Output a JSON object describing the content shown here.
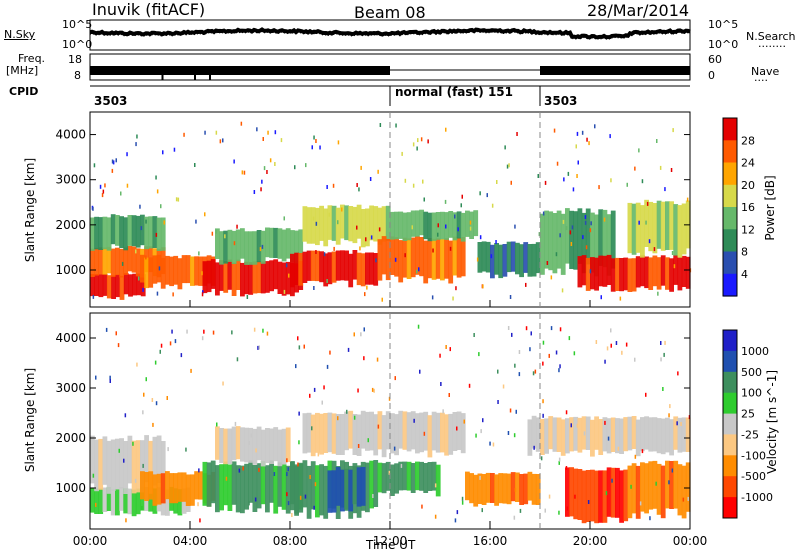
{
  "header": {
    "station": "Inuvik (fitACF)",
    "beam": "Beam 08",
    "date": "28/Mar/2014"
  },
  "top_panels": {
    "nsky_label": "N.Sky",
    "nsearch_label": "N.Search",
    "nsearch_legend": "........",
    "freq_label_1": "Freq.",
    "freq_label_2": "[MHz]",
    "nave_label": "Nave",
    "nave_legend": "....",
    "cpid_label": "CPID",
    "noise_ticks": [
      "10^5",
      "10^0"
    ],
    "freq_ticks": [
      "18",
      "8"
    ],
    "nave_ticks": [
      "60",
      "0"
    ],
    "cpid_segments": [
      {
        "label": "3503",
        "start": 0,
        "end": 12
      },
      {
        "label": "normal (fast) 151",
        "start": 12,
        "end": 18
      },
      {
        "label": "3503",
        "start": 18,
        "end": 24
      }
    ]
  },
  "x_axis": {
    "label": "Time UT",
    "ticks": [
      "00:00",
      "04:00",
      "08:00",
      "12:00",
      "16:00",
      "20:00",
      "00:00"
    ]
  },
  "colors": {
    "power": [
      "#1a1aff",
      "#2a4fb0",
      "#2e8b57",
      "#66b86a",
      "#d7d94a",
      "#ffa500",
      "#ff5a00",
      "#e40000"
    ],
    "velocity": [
      "#ff0000",
      "#ff4800",
      "#ff8c00",
      "#fcc882",
      "#c8c8c8",
      "#2ecc2e",
      "#3e8f5e",
      "#2050b0",
      "#2020c8"
    ]
  },
  "chart_data": [
    {
      "type": "heatmap",
      "title": "Power",
      "xlabel": "",
      "ylabel": "Slant Range [km]",
      "xlim": [
        0,
        24
      ],
      "ylim": [
        180,
        4500
      ],
      "yticks": [
        "1000",
        "2000",
        "3000",
        "4000"
      ],
      "colorbar": {
        "label": "Power [dB]",
        "ticks": [
          "28",
          "24",
          "20",
          "16",
          "12",
          "8",
          "4"
        ],
        "range": [
          0,
          32
        ]
      },
      "bands": [
        {
          "t0": 0,
          "t1": 2.2,
          "r0": 400,
          "r1": 900,
          "level": 7
        },
        {
          "t0": 0,
          "t1": 3,
          "r0": 900,
          "r1": 1500,
          "level": 6
        },
        {
          "t0": 0,
          "t1": 3,
          "r0": 1500,
          "r1": 2200,
          "level": 3
        },
        {
          "t0": 2,
          "t1": 5,
          "r0": 650,
          "r1": 1300,
          "level": 6
        },
        {
          "t0": 4.5,
          "t1": 8.5,
          "r0": 500,
          "r1": 1200,
          "level": 7
        },
        {
          "t0": 5,
          "t1": 8.5,
          "r0": 1200,
          "r1": 1900,
          "level": 3
        },
        {
          "t0": 8,
          "t1": 11.5,
          "r0": 700,
          "r1": 1400,
          "level": 7
        },
        {
          "t0": 8.5,
          "t1": 12,
          "r0": 1600,
          "r1": 2400,
          "level": 4
        },
        {
          "t0": 11.5,
          "t1": 15,
          "r0": 800,
          "r1": 1700,
          "level": 6
        },
        {
          "t0": 12,
          "t1": 15.5,
          "r0": 1700,
          "r1": 2300,
          "level": 3
        },
        {
          "t0": 15.5,
          "t1": 18,
          "r0": 900,
          "r1": 1600,
          "level": 2
        },
        {
          "t0": 18,
          "t1": 21,
          "r0": 1000,
          "r1": 2300,
          "level": 3
        },
        {
          "t0": 19.5,
          "t1": 24,
          "r0": 600,
          "r1": 1300,
          "level": 7
        },
        {
          "t0": 21.5,
          "t1": 24,
          "r0": 1400,
          "r1": 2500,
          "level": 4
        }
      ]
    },
    {
      "type": "heatmap",
      "title": "Velocity",
      "xlabel": "Time UT",
      "ylabel": "Slant Range [km]",
      "xlim": [
        0,
        24
      ],
      "ylim": [
        180,
        4500
      ],
      "yticks": [
        "1000",
        "2000",
        "3000",
        "4000"
      ],
      "colorbar": {
        "label": "Velocity [m s^-1]",
        "ticks": [
          "1000",
          "500",
          "100",
          "25",
          "-25",
          "-100",
          "-500",
          "-1000"
        ]
      },
      "bands": [
        {
          "t0": 0,
          "t1": 4,
          "r0": 500,
          "r1": 1000,
          "level": 5
        },
        {
          "t0": 0,
          "t1": 3,
          "r0": 1000,
          "r1": 2000,
          "level": 4
        },
        {
          "t0": 2,
          "t1": 5,
          "r0": 700,
          "r1": 1300,
          "level": 2
        },
        {
          "t0": 4.5,
          "t1": 8.5,
          "r0": 600,
          "r1": 1500,
          "level": 6
        },
        {
          "t0": 5,
          "t1": 8,
          "r0": 1500,
          "r1": 2200,
          "level": 4
        },
        {
          "t0": 8,
          "t1": 11.5,
          "r0": 500,
          "r1": 1500,
          "level": 6
        },
        {
          "t0": 9.5,
          "t1": 11,
          "r0": 600,
          "r1": 1400,
          "level": 7
        },
        {
          "t0": 8.5,
          "t1": 15,
          "r0": 1700,
          "r1": 2500,
          "level": 4
        },
        {
          "t0": 11.5,
          "t1": 14,
          "r0": 900,
          "r1": 1500,
          "level": 6
        },
        {
          "t0": 15,
          "t1": 18,
          "r0": 700,
          "r1": 1300,
          "level": 2
        },
        {
          "t0": 17.5,
          "t1": 24,
          "r0": 1700,
          "r1": 2400,
          "level": 4
        },
        {
          "t0": 19,
          "t1": 21.5,
          "r0": 400,
          "r1": 1400,
          "level": 1
        },
        {
          "t0": 21.5,
          "t1": 24,
          "r0": 500,
          "r1": 1500,
          "level": 2
        }
      ]
    }
  ]
}
